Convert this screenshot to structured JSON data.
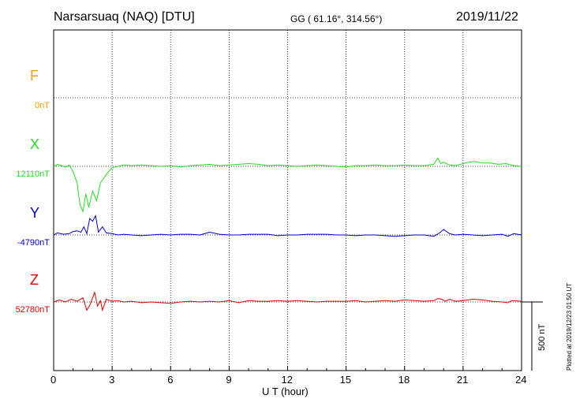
{
  "header": {
    "station": "Narsarsuaq (NAQ)  [DTU]",
    "coords": "GG ( 61.16°, 314.56°)",
    "date": "2019/11/22"
  },
  "footer_note": "Plotted at 2019/12/23 01:50 UT",
  "chart_data": {
    "type": "line",
    "xlabel": "U T (hour)",
    "xlim": [
      0,
      24
    ],
    "xticks": [
      0,
      3,
      6,
      9,
      12,
      15,
      18,
      21,
      24
    ],
    "scale_bar": {
      "value": 500,
      "label": "500 nT"
    },
    "channels": [
      {
        "name": "F",
        "baseline": "0nT",
        "color": "#f5a000",
        "points": []
      },
      {
        "name": "X",
        "baseline": "12110nT",
        "color": "#22dd22",
        "points": [
          [
            0,
            0
          ],
          [
            0.2,
            -15
          ],
          [
            0.4,
            -5
          ],
          [
            0.6,
            5
          ],
          [
            0.8,
            -10
          ],
          [
            1.0,
            40
          ],
          [
            1.2,
            120
          ],
          [
            1.35,
            280
          ],
          [
            1.5,
            330
          ],
          [
            1.65,
            200
          ],
          [
            1.8,
            300
          ],
          [
            2.0,
            180
          ],
          [
            2.2,
            250
          ],
          [
            2.4,
            120
          ],
          [
            2.6,
            80
          ],
          [
            2.8,
            40
          ],
          [
            3.0,
            10
          ],
          [
            3.3,
            0
          ],
          [
            3.6,
            -10
          ],
          [
            4,
            -5
          ],
          [
            4.5,
            -10
          ],
          [
            5,
            -5
          ],
          [
            5.5,
            0
          ],
          [
            6,
            -5
          ],
          [
            6.5,
            5
          ],
          [
            7,
            -5
          ],
          [
            7.5,
            -10
          ],
          [
            8,
            -15
          ],
          [
            8.5,
            -5
          ],
          [
            9,
            -10
          ],
          [
            9.5,
            -15
          ],
          [
            10,
            -20
          ],
          [
            10.5,
            -15
          ],
          [
            11,
            -5
          ],
          [
            11.5,
            -10
          ],
          [
            12,
            -5
          ],
          [
            12.5,
            0
          ],
          [
            13,
            -5
          ],
          [
            13.5,
            -10
          ],
          [
            14,
            -5
          ],
          [
            14.5,
            0
          ],
          [
            15,
            5
          ],
          [
            15.5,
            -5
          ],
          [
            16,
            -5
          ],
          [
            16.5,
            -10
          ],
          [
            17,
            -5
          ],
          [
            17.5,
            -5
          ],
          [
            18,
            -10
          ],
          [
            18.5,
            -5
          ],
          [
            19,
            -5
          ],
          [
            19.5,
            -15
          ],
          [
            19.7,
            -60
          ],
          [
            19.85,
            -20
          ],
          [
            20,
            -30
          ],
          [
            20.3,
            -10
          ],
          [
            20.6,
            -5
          ],
          [
            21,
            -20
          ],
          [
            21.3,
            -30
          ],
          [
            21.6,
            -35
          ],
          [
            22,
            -25
          ],
          [
            22.4,
            -25
          ],
          [
            22.8,
            -15
          ],
          [
            23.2,
            -20
          ],
          [
            23.6,
            -5
          ],
          [
            24,
            0
          ]
        ]
      },
      {
        "name": "Y",
        "baseline": "-4790nT",
        "color": "#0000d0",
        "points": [
          [
            0,
            0
          ],
          [
            0.2,
            -15
          ],
          [
            0.5,
            -5
          ],
          [
            0.8,
            -10
          ],
          [
            1.0,
            -25
          ],
          [
            1.2,
            -30
          ],
          [
            1.4,
            -20
          ],
          [
            1.55,
            -60
          ],
          [
            1.7,
            -10
          ],
          [
            1.85,
            -120
          ],
          [
            2.0,
            -100
          ],
          [
            2.15,
            -140
          ],
          [
            2.3,
            -20
          ],
          [
            2.5,
            -60
          ],
          [
            2.7,
            -15
          ],
          [
            3.0,
            -10
          ],
          [
            3.3,
            0
          ],
          [
            3.6,
            -5
          ],
          [
            4,
            0
          ],
          [
            4.5,
            5
          ],
          [
            5,
            0
          ],
          [
            5.5,
            -5
          ],
          [
            6,
            0
          ],
          [
            6.5,
            -5
          ],
          [
            7,
            -5
          ],
          [
            7.5,
            0
          ],
          [
            8,
            -20
          ],
          [
            8.5,
            -5
          ],
          [
            9,
            0
          ],
          [
            9.5,
            0
          ],
          [
            10,
            -5
          ],
          [
            10.5,
            -5
          ],
          [
            11,
            -5
          ],
          [
            11.5,
            5
          ],
          [
            12,
            0
          ],
          [
            12.5,
            0
          ],
          [
            13,
            -5
          ],
          [
            13.5,
            -5
          ],
          [
            14,
            -5
          ],
          [
            14.5,
            0
          ],
          [
            15,
            0
          ],
          [
            15.5,
            5
          ],
          [
            16,
            0
          ],
          [
            16.5,
            0
          ],
          [
            17,
            5
          ],
          [
            17.5,
            10
          ],
          [
            18,
            5
          ],
          [
            18.5,
            0
          ],
          [
            19,
            0
          ],
          [
            19.5,
            10
          ],
          [
            19.8,
            -15
          ],
          [
            20.0,
            -40
          ],
          [
            20.3,
            -10
          ],
          [
            20.6,
            0
          ],
          [
            21,
            -5
          ],
          [
            21.5,
            0
          ],
          [
            22,
            5
          ],
          [
            22.5,
            0
          ],
          [
            23,
            -5
          ],
          [
            23.3,
            10
          ],
          [
            23.6,
            -10
          ],
          [
            24,
            0
          ]
        ]
      },
      {
        "name": "Z",
        "baseline": "52780nT",
        "color": "#dd0000",
        "points": [
          [
            0,
            0
          ],
          [
            0.3,
            -15
          ],
          [
            0.6,
            0
          ],
          [
            0.9,
            -20
          ],
          [
            1.2,
            -5
          ],
          [
            1.5,
            -30
          ],
          [
            1.7,
            60
          ],
          [
            1.85,
            25
          ],
          [
            2.0,
            -30
          ],
          [
            2.1,
            -70
          ],
          [
            2.25,
            30
          ],
          [
            2.4,
            -10
          ],
          [
            2.5,
            60
          ],
          [
            2.7,
            -20
          ],
          [
            3.0,
            -5
          ],
          [
            3.3,
            -10
          ],
          [
            3.6,
            0
          ],
          [
            4,
            -5
          ],
          [
            4.5,
            5
          ],
          [
            5,
            0
          ],
          [
            5.5,
            5
          ],
          [
            6,
            10
          ],
          [
            6.5,
            0
          ],
          [
            7,
            -5
          ],
          [
            7.5,
            0
          ],
          [
            8,
            -5
          ],
          [
            8.5,
            0
          ],
          [
            9,
            -10
          ],
          [
            9.5,
            5
          ],
          [
            10,
            -10
          ],
          [
            10.5,
            -5
          ],
          [
            11,
            -5
          ],
          [
            11.5,
            -10
          ],
          [
            12,
            -5
          ],
          [
            12.5,
            -10
          ],
          [
            13,
            -5
          ],
          [
            13.5,
            0
          ],
          [
            14,
            -5
          ],
          [
            14.5,
            -5
          ],
          [
            15,
            -5
          ],
          [
            15.5,
            -10
          ],
          [
            16,
            0
          ],
          [
            16.5,
            -5
          ],
          [
            17,
            -10
          ],
          [
            17.5,
            -5
          ],
          [
            18,
            -15
          ],
          [
            18.5,
            -10
          ],
          [
            19,
            -5
          ],
          [
            19.5,
            -10
          ],
          [
            19.7,
            -25
          ],
          [
            19.9,
            -20
          ],
          [
            20.1,
            -5
          ],
          [
            20.3,
            -20
          ],
          [
            20.6,
            -5
          ],
          [
            21,
            -10
          ],
          [
            21.5,
            -20
          ],
          [
            22,
            -15
          ],
          [
            22.5,
            -5
          ],
          [
            23,
            0
          ],
          [
            23.3,
            5
          ],
          [
            23.5,
            -10
          ],
          [
            24,
            -5
          ]
        ]
      }
    ]
  }
}
